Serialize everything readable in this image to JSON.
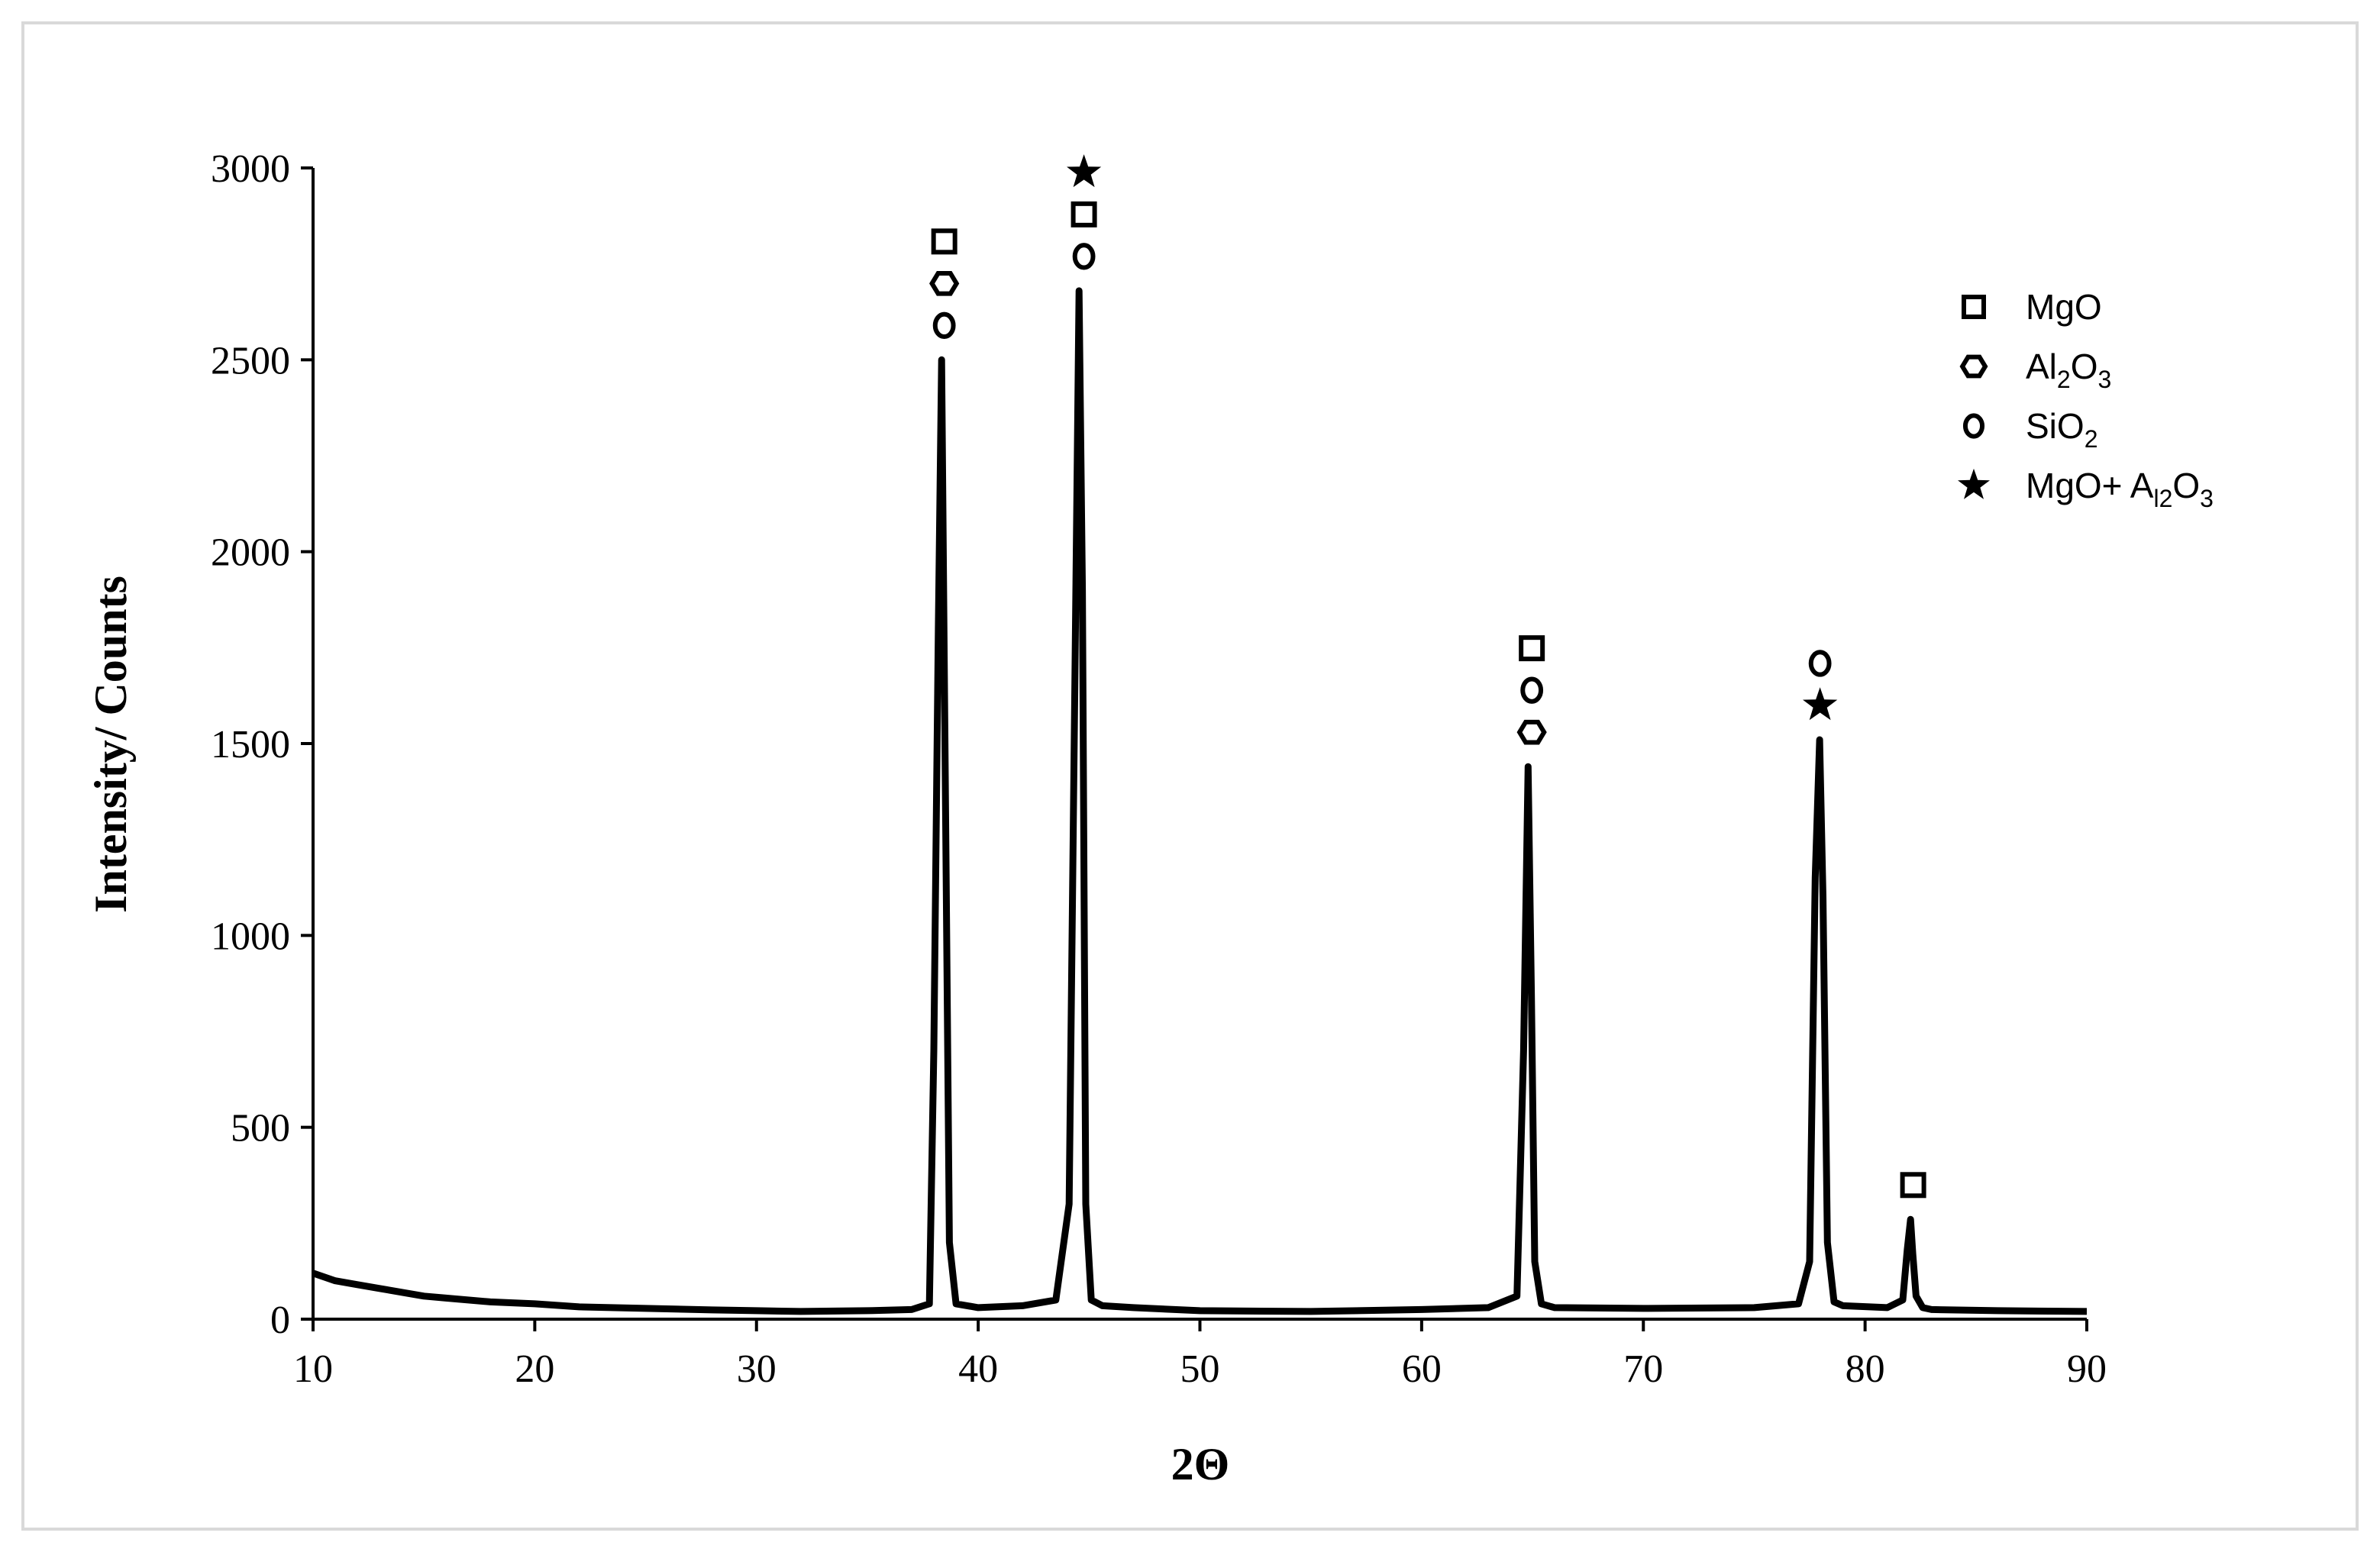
{
  "chart_data": {
    "type": "line",
    "title": "",
    "xlabel": "2Θ",
    "ylabel": "Intensity/ Counts",
    "xlim": [
      10,
      90
    ],
    "ylim": [
      0,
      3000
    ],
    "xticks": [
      10,
      20,
      30,
      40,
      50,
      60,
      70,
      80,
      90
    ],
    "yticks": [
      0,
      500,
      1000,
      1500,
      2000,
      2500,
      3000
    ],
    "grid": false,
    "legend_position": "top-right",
    "colors": {
      "line": "#000000",
      "frame": "#d9d9d9"
    },
    "series": [
      {
        "x": [
          10,
          10.5,
          11,
          12,
          13,
          14,
          15,
          16,
          18,
          20,
          22,
          25,
          28,
          30,
          32,
          35,
          37,
          37.8,
          38.0,
          38.2,
          38.35,
          38.5,
          38.7,
          39.0,
          40,
          42,
          43.5,
          44.1,
          44.35,
          44.55,
          44.7,
          44.85,
          45.1,
          45.6,
          47,
          50,
          55,
          60,
          63,
          64.3,
          64.6,
          64.8,
          64.95,
          65.1,
          65.4,
          66,
          70,
          75,
          77,
          77.5,
          77.75,
          77.95,
          78.1,
          78.3,
          78.6,
          79,
          81,
          81.7,
          81.9,
          82.05,
          82.15,
          82.3,
          82.6,
          83,
          86,
          90
        ],
        "y": [
          120,
          110,
          100,
          90,
          80,
          70,
          60,
          55,
          45,
          40,
          32,
          28,
          24,
          22,
          20,
          22,
          25,
          40,
          700,
          1800,
          2500,
          1500,
          200,
          40,
          30,
          35,
          50,
          300,
          1600,
          2680,
          1900,
          300,
          50,
          35,
          30,
          22,
          20,
          25,
          30,
          60,
          700,
          1440,
          850,
          150,
          40,
          30,
          28,
          30,
          40,
          150,
          1150,
          1510,
          1100,
          200,
          45,
          35,
          30,
          50,
          180,
          260,
          170,
          60,
          30,
          25,
          22,
          20
        ]
      }
    ],
    "annotations": [
      {
        "x": 38.4,
        "markers": [
          "square",
          "hexagon",
          "circle"
        ]
      },
      {
        "x": 44.7,
        "markers": [
          "star",
          "square",
          "circle"
        ]
      },
      {
        "x": 64.9,
        "markers": [
          "square",
          "circle",
          "hexagon"
        ]
      },
      {
        "x": 77.9,
        "markers": [
          "circle",
          "star"
        ]
      },
      {
        "x": 82.1,
        "markers": [
          "square"
        ]
      }
    ],
    "legend": [
      {
        "marker": "square",
        "text": "MgO",
        "sub": "",
        "tail": ""
      },
      {
        "marker": "hexagon",
        "text": "Al",
        "sub": "2",
        "mid": "O",
        "sub2": "3"
      },
      {
        "marker": "circle",
        "text": "SiO",
        "sub": "2",
        "mid": "",
        "sub2": ""
      },
      {
        "marker": "star",
        "text": "MgO+ A",
        "sub": "l2",
        "mid": "O",
        "sub2": "3"
      }
    ]
  }
}
